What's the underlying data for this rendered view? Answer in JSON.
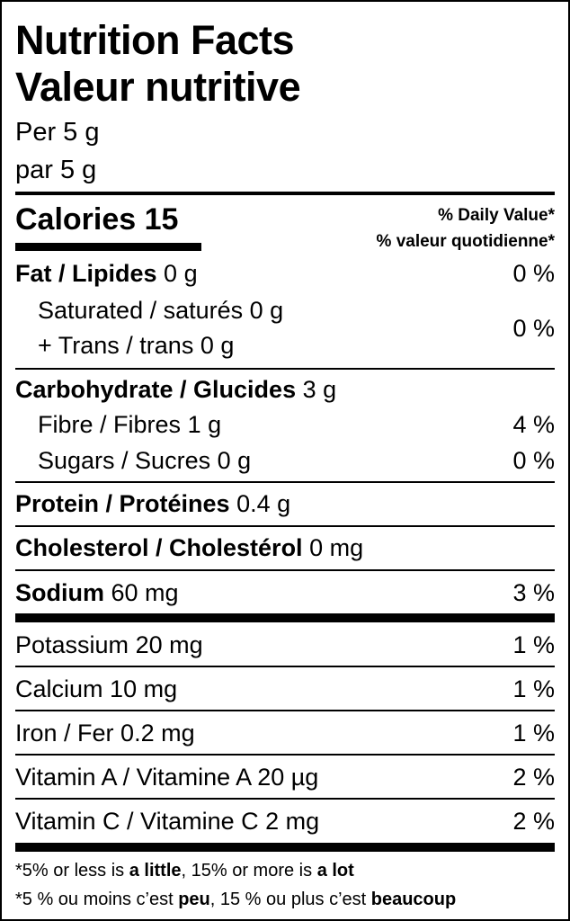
{
  "title_en": "Nutrition Facts",
  "title_fr": "Valeur nutritive",
  "serving_en": "Per 5 g",
  "serving_fr": "par 5 g",
  "calories_label": "Calories",
  "calories_value": "15",
  "dv_en": "% Daily Value*",
  "dv_fr": "% valeur quotidienne*",
  "fat": {
    "name": "Fat / Lipides",
    "amount": "0 g",
    "dv": "0 %"
  },
  "saturated": {
    "name": "Saturated / saturés",
    "amount": "0 g"
  },
  "trans": {
    "name": "+ Trans / trans",
    "amount": "0 g"
  },
  "sat_trans_dv": "0 %",
  "carb": {
    "name": "Carbohydrate / Glucides",
    "amount": "3 g"
  },
  "fibre": {
    "name": "Fibre / Fibres",
    "amount": "1 g",
    "dv": "4 %"
  },
  "sugars": {
    "name": "Sugars / Sucres",
    "amount": "0 g",
    "dv": "0 %"
  },
  "protein": {
    "name": "Protein / Protéines",
    "amount": "0.4 g"
  },
  "cholesterol": {
    "name": "Cholesterol / Cholestérol",
    "amount": "0 mg"
  },
  "sodium": {
    "name": "Sodium",
    "amount": "60 mg",
    "dv": "3 %"
  },
  "potassium": {
    "name": "Potassium",
    "amount": "20 mg",
    "dv": "1 %"
  },
  "calcium": {
    "name": "Calcium",
    "amount": "10 mg",
    "dv": "1 %"
  },
  "iron": {
    "name": "Iron / Fer",
    "amount": "0.2 mg",
    "dv": "1 %"
  },
  "vitamin_a": {
    "name": "Vitamin A / Vitamine A",
    "amount": "20 µg",
    "dv": "2 %"
  },
  "vitamin_c": {
    "name": "Vitamin C / Vitamine C",
    "amount": "2 mg",
    "dv": "2 %"
  },
  "footnote_en": {
    "a": "*5% or less is ",
    "b": "a little",
    "c": ", 15% or more is ",
    "d": "a lot"
  },
  "footnote_fr": {
    "a": "*5 % ou moins c’est ",
    "b": "peu",
    "c": ", 15 % ou plus c’est ",
    "d": "beaucoup"
  }
}
